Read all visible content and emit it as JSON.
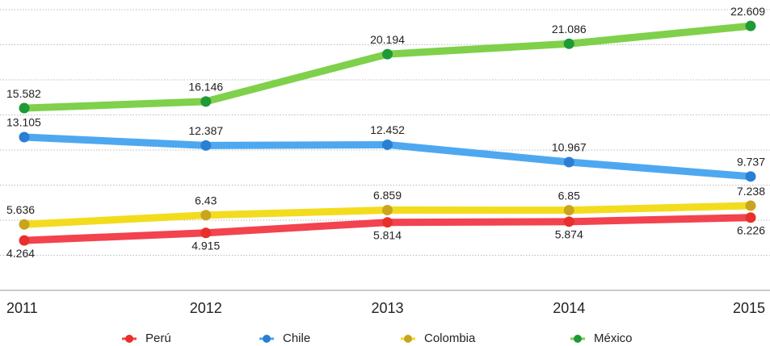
{
  "chart_data": {
    "type": "line",
    "categories": [
      "2011",
      "2012",
      "2013",
      "2014",
      "2015"
    ],
    "series": [
      {
        "name": "Perú",
        "color": "#f2434f",
        "marker_color": "#e8302a",
        "values": [
          4.264,
          4.915,
          5.814,
          5.874,
          6.226
        ]
      },
      {
        "name": "Chile",
        "color": "#4ea8f0",
        "marker_color": "#2a7fd4",
        "values": [
          13.105,
          12.387,
          12.452,
          10.967,
          9.737
        ]
      },
      {
        "name": "Colombia",
        "color": "#f3dc1e",
        "marker_color": "#c9a51e",
        "values": [
          5.636,
          6.43,
          6.859,
          6.85,
          7.238
        ]
      },
      {
        "name": "México",
        "color": "#7fd04a",
        "marker_color": "#1e9a36",
        "values": [
          15.582,
          16.146,
          20.194,
          21.086,
          22.609
        ]
      }
    ],
    "label_below": [
      true,
      false,
      false,
      false
    ],
    "ylim": [
      0,
      24
    ],
    "yticks": [
      0,
      3,
      6,
      9,
      12,
      15,
      18,
      21,
      24
    ],
    "grid": true
  }
}
